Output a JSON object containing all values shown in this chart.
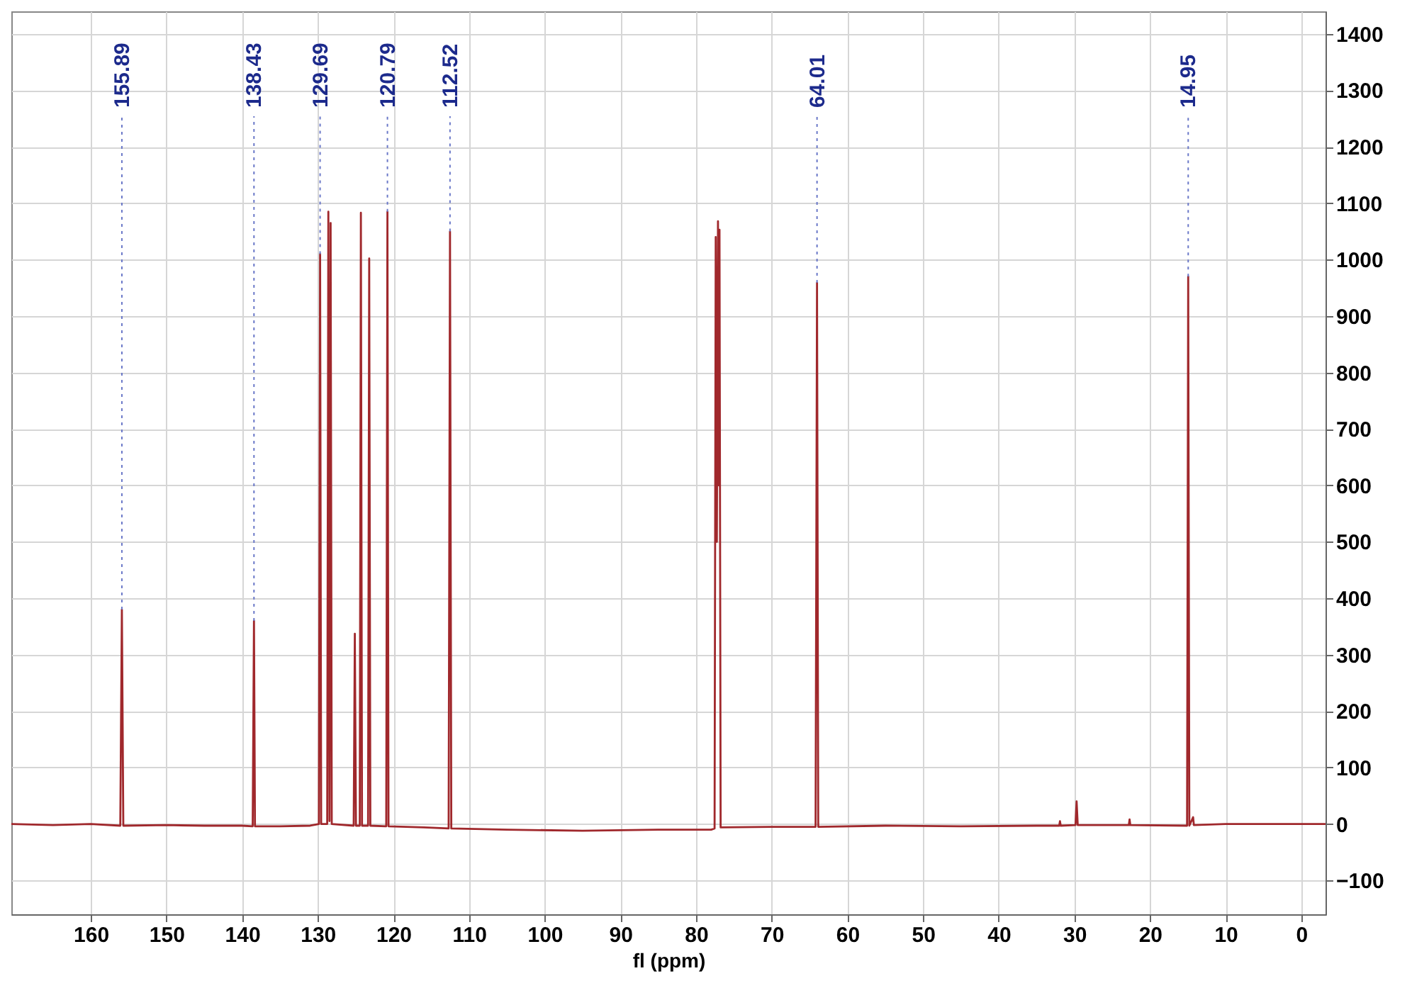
{
  "chart_data": {
    "type": "line",
    "xlabel": "fl (ppm)",
    "x": [
      170.5,
      165,
      160,
      156.1,
      155.89,
      155.7,
      150,
      145,
      140,
      138.6,
      138.43,
      138.3,
      135,
      131,
      129.85,
      129.69,
      129.55,
      128.75,
      128.6,
      128.45,
      128.3,
      128.15,
      125.25,
      125.1,
      124.95,
      124.45,
      124.3,
      124.15,
      123.35,
      123.2,
      123.05,
      120.95,
      120.79,
      120.65,
      116,
      112.7,
      112.52,
      112.35,
      105,
      95,
      85,
      78,
      77.55,
      77.4,
      77.25,
      77.1,
      77.0,
      76.9,
      76.75,
      70,
      64.2,
      64.01,
      63.85,
      55,
      45,
      35,
      32.0,
      31.9,
      31.8,
      29.85,
      29.7,
      29.55,
      22.8,
      22.7,
      22.6,
      15.1,
      14.95,
      14.8,
      14.3,
      14.2,
      10,
      5,
      0,
      -3.2
    ],
    "series": [
      {
        "color": "#a0282c",
        "values": [
          0,
          -2,
          0,
          -3,
          380,
          -3,
          -2,
          -3,
          -3,
          -4,
          360,
          -4,
          -4,
          -3,
          0,
          1010,
          0,
          0,
          1085,
          5,
          1065,
          0,
          -3,
          337,
          -3,
          -3,
          1083,
          -3,
          -3,
          1002,
          -3,
          -4,
          1085,
          -4,
          -6,
          -8,
          1050,
          -8,
          -10,
          -12,
          -10,
          -10,
          -8,
          1040,
          500,
          1068,
          600,
          1053,
          -6,
          -5,
          -5,
          959,
          -5,
          -3,
          -4,
          -3,
          -3,
          5,
          -3,
          -2,
          40,
          -2,
          -2,
          8,
          -2,
          -3,
          970,
          -3,
          12,
          -2,
          0,
          0,
          0,
          0
        ]
      }
    ],
    "xlim": [
      170.5,
      -3.2
    ],
    "xticks": [
      160,
      150,
      140,
      130,
      120,
      110,
      100,
      90,
      80,
      70,
      60,
      50,
      40,
      30,
      20,
      10,
      0
    ],
    "ylim": [
      -160,
      1440
    ],
    "yticks": [
      -100,
      0,
      100,
      200,
      300,
      400,
      500,
      600,
      700,
      800,
      900,
      1000,
      1100,
      1200,
      1300,
      1400
    ],
    "grid": true,
    "annotations": [
      {
        "text": "155.89",
        "x": 155.89,
        "y": 380
      },
      {
        "text": "138.43",
        "x": 138.43,
        "y": 360
      },
      {
        "text": "129.69",
        "x": 129.69,
        "y": 1010
      },
      {
        "text": "120.79",
        "x": 120.79,
        "y": 1085
      },
      {
        "text": "112.52",
        "x": 112.52,
        "y": 1050
      },
      {
        "text": "64.01",
        "x": 64.01,
        "y": 959
      },
      {
        "text": "14.95",
        "x": 14.95,
        "y": 970
      }
    ]
  }
}
